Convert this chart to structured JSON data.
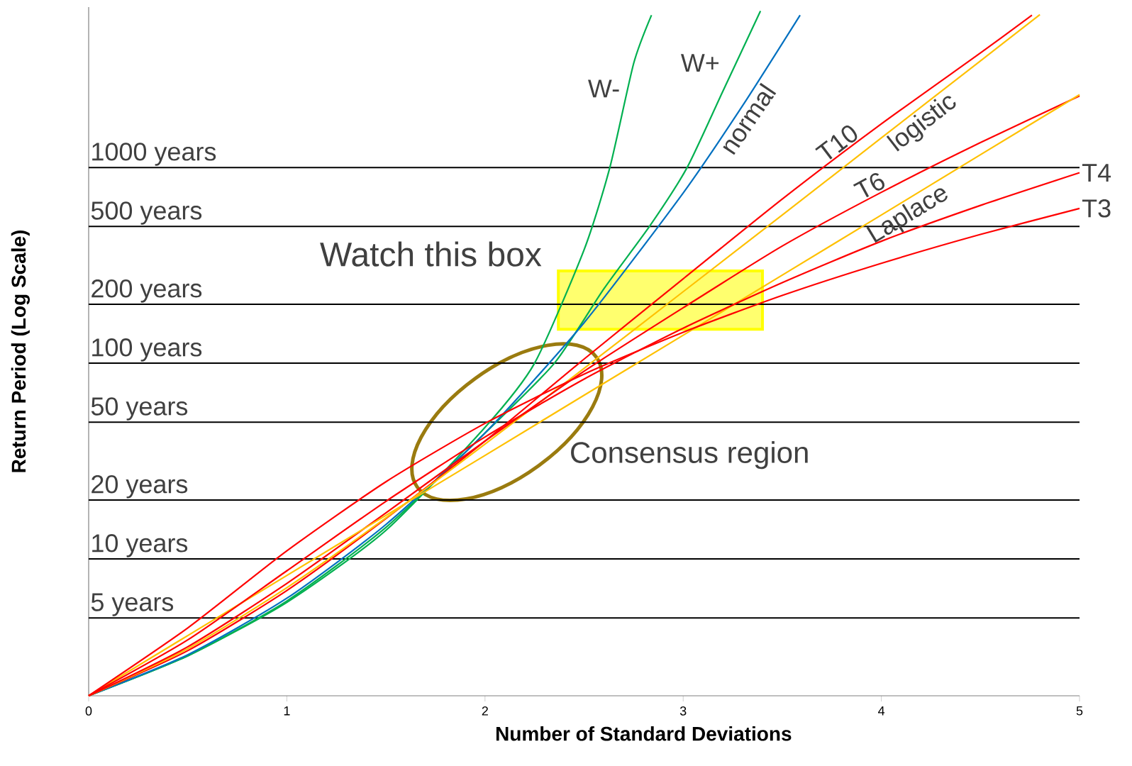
{
  "chart_data": {
    "type": "line",
    "xlabel": "Number of Standard Deviations",
    "ylabel": "Return Period (Log Scale)",
    "log": "y",
    "xlim": [
      0,
      5
    ],
    "ylim": [
      2,
      6600
    ],
    "xticks": [
      0,
      1,
      2,
      3,
      4,
      5
    ],
    "tick_labels": "x",
    "marker": "none",
    "line_style": "solid",
    "series": [
      {
        "name": "W-",
        "color": "#00b050",
        "x": [
          0,
          0.5,
          1,
          1.5,
          2,
          2.25,
          2.5,
          2.63,
          2.75,
          2.84
        ],
        "values": [
          2,
          3.2,
          6,
          14,
          47,
          100,
          380,
          1000,
          3400,
          6000
        ]
      },
      {
        "name": "W+",
        "color": "#00b050",
        "x": [
          0,
          0.5,
          1,
          1.5,
          2,
          2.35,
          2.6,
          2.83,
          3.02,
          3.2,
          3.39
        ],
        "values": [
          2,
          3.2,
          6.1,
          14.5,
          44,
          100,
          240,
          500,
          1000,
          2450,
          6300
        ]
      },
      {
        "name": "normal",
        "color": "#0070c0",
        "x": [
          0,
          0.5,
          1,
          1.5,
          2,
          2.5,
          3,
          3.3,
          3.59
        ],
        "values": [
          2,
          3.24,
          6.3,
          15,
          44,
          161,
          741,
          2070,
          6000
        ]
      },
      {
        "name": "T10",
        "color": "#ff0000",
        "x": [
          0,
          0.5,
          1,
          1.5,
          2,
          2.5,
          3,
          3.5,
          4,
          4.5,
          4.76
        ],
        "values": [
          2,
          3.4,
          6.9,
          16.1,
          40,
          105,
          270,
          690,
          1670,
          3850,
          6000
        ]
      },
      {
        "name": "logistic",
        "color": "#ffc000",
        "x": [
          0,
          0.5,
          1,
          1.5,
          2,
          2.5,
          3,
          3.5,
          4,
          4.5,
          4.8
        ],
        "values": [
          2,
          3.48,
          7.13,
          16.2,
          38.6,
          94.2,
          232,
          572,
          1416,
          3505,
          6040
        ]
      },
      {
        "name": "T6",
        "color": "#ff0000",
        "x": [
          0,
          0.5,
          1,
          1.5,
          2,
          2.5,
          3,
          3.5,
          4,
          4.5,
          5
        ],
        "values": [
          2,
          3.56,
          7.5,
          17.2,
          40,
          91,
          192,
          397,
          747,
          1340,
          2320
        ]
      },
      {
        "name": "Laplace",
        "color": "#ffc000",
        "x": [
          0,
          0.5,
          1,
          1.5,
          2,
          2.5,
          3,
          3.5,
          4,
          4.5,
          5
        ],
        "values": [
          2,
          4.06,
          8.23,
          16.7,
          33.8,
          68.6,
          139,
          282,
          572,
          1162,
          2354
        ]
      },
      {
        "name": "T4",
        "color": "#ff0000",
        "x": [
          0,
          0.5,
          1,
          1.5,
          2,
          2.5,
          3,
          3.5,
          4,
          4.5,
          5
        ],
        "values": [
          2,
          3.86,
          8.7,
          19.7,
          42,
          83,
          151,
          258,
          420,
          640,
          940
        ]
      },
      {
        "name": "T3",
        "color": "#ff0000",
        "x": [
          0,
          0.5,
          1,
          1.5,
          2,
          2.5,
          3,
          3.5,
          4,
          4.5,
          5
        ],
        "values": [
          2,
          4.44,
          11,
          24.8,
          49.3,
          88,
          144,
          222,
          324,
          455,
          618
        ]
      }
    ],
    "ref_lines": [
      {
        "axis": "y",
        "value": 1000,
        "label": "1000 years",
        "color": "#000000"
      },
      {
        "axis": "y",
        "value": 500,
        "label": "500 years",
        "color": "#000000"
      },
      {
        "axis": "y",
        "value": 200,
        "label": "200 years",
        "color": "#000000"
      },
      {
        "axis": "y",
        "value": 100,
        "label": "100 years",
        "color": "#000000"
      },
      {
        "axis": "y",
        "value": 50,
        "label": "50 years",
        "color": "#000000"
      },
      {
        "axis": "y",
        "value": 20,
        "label": "20 years",
        "color": "#000000"
      },
      {
        "axis": "y",
        "value": 10,
        "label": "10 years",
        "color": "#000000"
      },
      {
        "axis": "y",
        "value": 5,
        "label": "5 years",
        "color": "#000000"
      }
    ],
    "annotations": [
      "Watch this box",
      "Consensus region"
    ]
  }
}
